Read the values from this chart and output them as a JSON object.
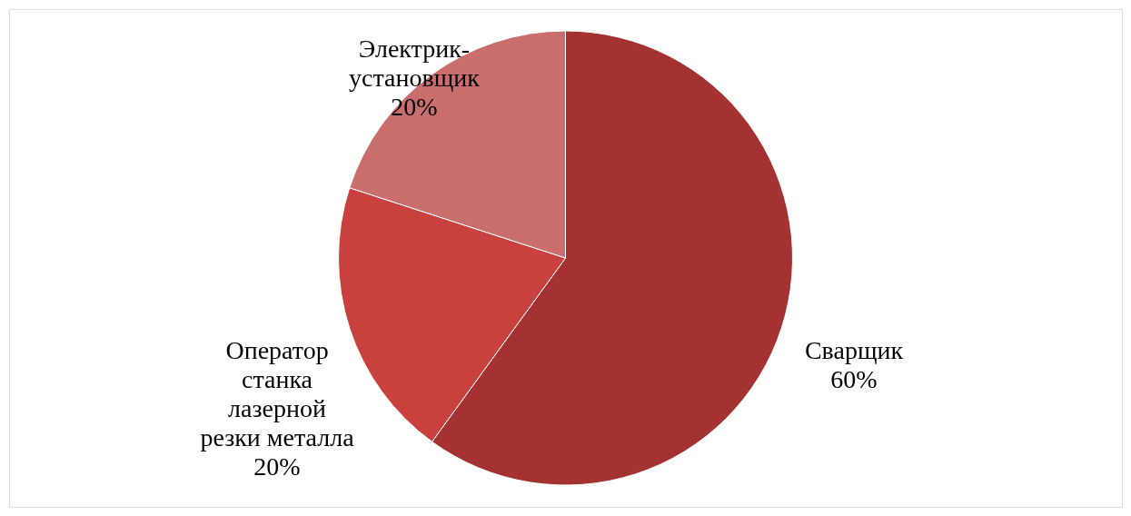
{
  "chart_data": {
    "type": "pie",
    "categories": [
      "Сварщик",
      "Оператор станка лазерной резки металла",
      "Электрик-установщик"
    ],
    "values": [
      60,
      20,
      20
    ],
    "value_labels": [
      "60%",
      "20%",
      "20%"
    ],
    "colors": [
      "#a33230",
      "#c9413e",
      "#c96e6c"
    ]
  }
}
